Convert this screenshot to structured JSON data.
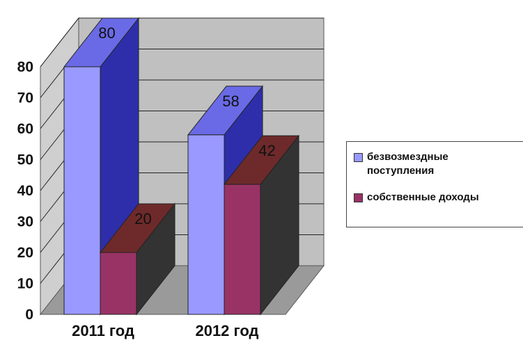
{
  "chart_data": {
    "type": "bar",
    "categories": [
      "2011 год",
      "2012 год"
    ],
    "series": [
      {
        "name": "безвозмездные поступления",
        "values": [
          80,
          58
        ],
        "color": "#9999ff",
        "color_side": "#2e2eaa",
        "color_top": "#6a6ae6"
      },
      {
        "name": "собственные доходы",
        "values": [
          20,
          42
        ],
        "color": "#993366",
        "color_side": "#333333",
        "color_top": "#6e2a2a"
      }
    ],
    "y_ticks": [
      "0",
      "10",
      "20",
      "30",
      "40",
      "50",
      "60",
      "70",
      "80"
    ],
    "data_labels": [
      [
        "80",
        "58"
      ],
      [
        "20",
        "42"
      ]
    ],
    "ylim": [
      0,
      80
    ],
    "gridlines": true,
    "legend_position": "right",
    "title": "",
    "xlabel": "",
    "ylabel": ""
  }
}
